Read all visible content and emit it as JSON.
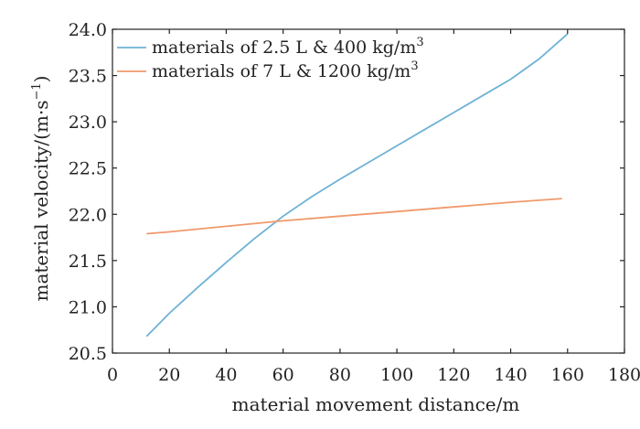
{
  "chart_data": {
    "type": "line",
    "title": "",
    "xlabel": "material movement distance/m",
    "ylabel": "material velocity/(m·s",
    "ylabel_superscript": "−1",
    "ylabel_close": ")",
    "xlim": [
      0,
      180
    ],
    "ylim": [
      20.5,
      24.0
    ],
    "x_ticks": [
      0,
      20,
      40,
      60,
      80,
      100,
      120,
      140,
      160,
      180
    ],
    "y_ticks": [
      "20.5",
      "21.0",
      "21.5",
      "22.0",
      "22.5",
      "23.0",
      "23.5",
      "24.0"
    ],
    "grid": false,
    "legend_position": "top-left",
    "series": [
      {
        "name": "materials of 2.5 L & 400 kg/m",
        "name_superscript": "3",
        "color": "#6fb2d6",
        "x": [
          12,
          20,
          30,
          40,
          50,
          60,
          70,
          80,
          90,
          100,
          110,
          120,
          130,
          140,
          150,
          160
        ],
        "y": [
          20.68,
          20.93,
          21.21,
          21.48,
          21.74,
          21.98,
          22.19,
          22.38,
          22.56,
          22.74,
          22.92,
          23.1,
          23.28,
          23.46,
          23.68,
          23.95
        ]
      },
      {
        "name": "materials of 7 L & 1200 kg/m",
        "name_superscript": "3",
        "color": "#ef9a6c",
        "x": [
          12,
          20,
          40,
          60,
          80,
          100,
          120,
          140,
          158
        ],
        "y": [
          21.79,
          21.81,
          21.87,
          21.93,
          21.98,
          22.03,
          22.08,
          22.13,
          22.17
        ]
      }
    ]
  }
}
